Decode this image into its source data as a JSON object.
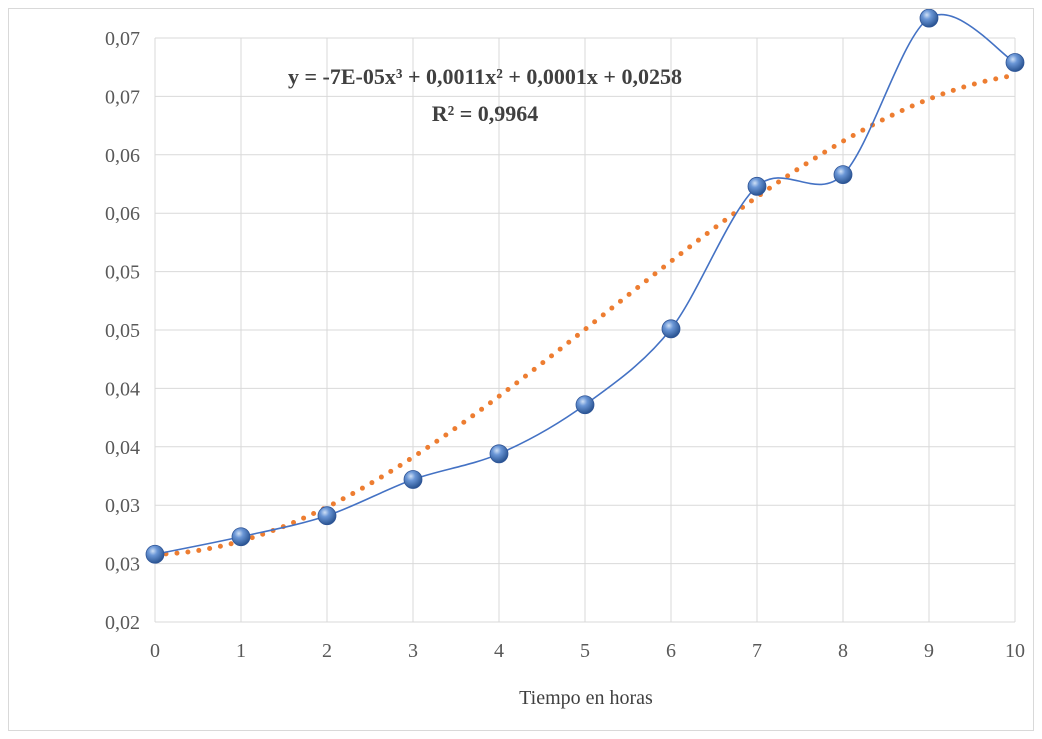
{
  "chart_data": {
    "type": "line",
    "xlabel": "Tiempo en horas",
    "ylabel": "",
    "x": [
      0,
      1,
      2,
      3,
      4,
      5,
      6,
      7,
      8,
      9,
      10
    ],
    "x_ticks": [
      "0",
      "1",
      "2",
      "3",
      "4",
      "5",
      "6",
      "7",
      "8",
      "9",
      "10"
    ],
    "xlim": [
      0,
      10
    ],
    "ylim": [
      0.02,
      0.07
    ],
    "y_ticks": [
      0.02,
      0.025,
      0.03,
      0.035,
      0.04,
      0.045,
      0.05,
      0.055,
      0.06,
      0.065,
      0.07
    ],
    "y_tick_labels": [
      "0,02",
      "0,03",
      "0,03",
      "0,04",
      "0,04",
      "0,05",
      "0,05",
      "0,06",
      "0,06",
      "0,07",
      "0,07"
    ],
    "grid": true,
    "series": [
      {
        "values": [
          0.0258,
          0.0273,
          0.0291,
          0.0322,
          0.0344,
          0.0386,
          0.0451,
          0.0573,
          0.0583,
          0.0717,
          0.0679
        ],
        "color": "#4472c4",
        "style": "smooth line with sphere markers"
      }
    ],
    "trendline": {
      "type": "polynomial",
      "order": 3,
      "coefficients": [
        -7e-05,
        0.0011,
        0.0001,
        0.0258
      ],
      "color": "#ed7d31",
      "style": "dotted"
    },
    "annotations": {
      "equation": "y = -7E-05x³ + 0,0011x² + 0,0001x + 0,0258",
      "r_squared": "R² = 0,9964"
    }
  }
}
